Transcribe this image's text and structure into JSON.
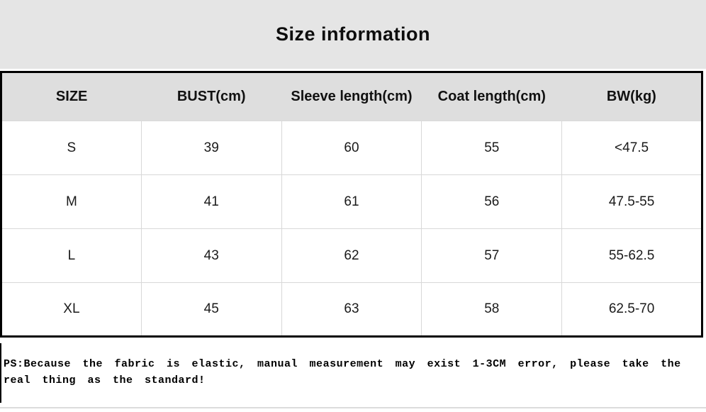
{
  "title": "Size information",
  "chart_data": {
    "type": "table",
    "title": "Size information",
    "columns": [
      "SIZE",
      "BUST(cm)",
      "Sleeve length(cm)",
      "Coat length(cm)",
      "BW(kg)"
    ],
    "rows": [
      [
        "S",
        "39",
        "60",
        "55",
        "<47.5"
      ],
      [
        "M",
        "41",
        "61",
        "56",
        "47.5-55"
      ],
      [
        "L",
        "43",
        "62",
        "57",
        "55-62.5"
      ],
      [
        "XL",
        "45",
        "63",
        "58",
        "62.5-70"
      ]
    ],
    "note": "PS:Because the fabric is elastic, manual measurement may exist 1-3CM error, please take the real thing as the standard!"
  },
  "colors": {
    "title_band_bg": "#e5e5e5",
    "header_row_bg": "#dedede",
    "table_border": "#000000",
    "cell_divider": "#d8d8d8",
    "text": "#1a1a1a"
  }
}
